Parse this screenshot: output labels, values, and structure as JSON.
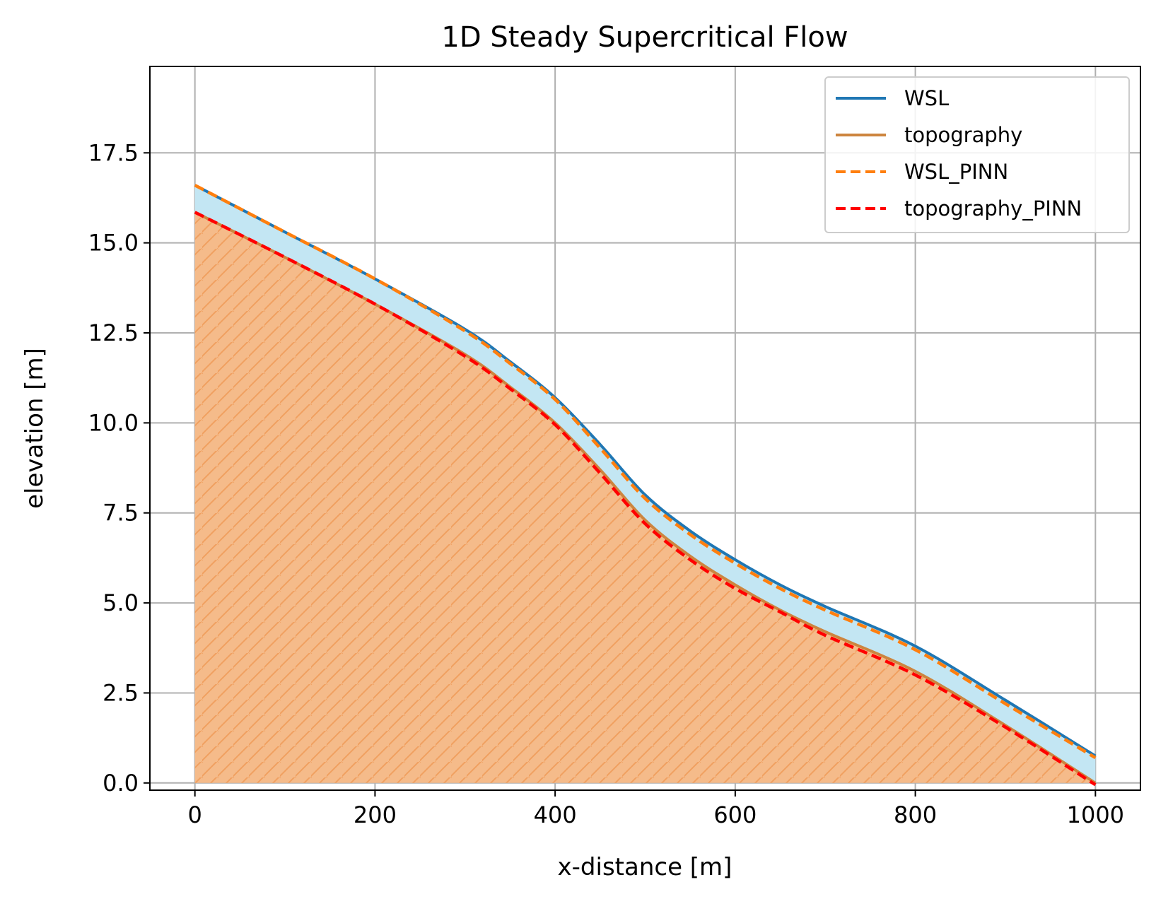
{
  "chart_data": {
    "type": "line",
    "title": "1D Steady Supercritical Flow",
    "xlabel": "x-distance [m]",
    "ylabel": "elevation [m]",
    "xlim": [
      -50,
      1050
    ],
    "ylim": [
      -0.2,
      19.9
    ],
    "xticks": [
      "0",
      "200",
      "400",
      "600",
      "800",
      "1000"
    ],
    "yticks": [
      "0.0",
      "2.5",
      "5.0",
      "7.5",
      "10.0",
      "12.5",
      "15.0",
      "17.5"
    ],
    "grid": true,
    "legend_position": "top-right",
    "x": [
      0,
      100,
      200,
      300,
      350,
      400,
      450,
      500,
      550,
      600,
      650,
      700,
      800,
      900,
      1000
    ],
    "series": [
      {
        "name": "WSL",
        "color": "#1f77b4",
        "style": "solid",
        "values": [
          16.6,
          15.3,
          14.0,
          12.6,
          11.7,
          10.7,
          9.4,
          8.0,
          7.0,
          6.2,
          5.5,
          4.9,
          3.8,
          2.3,
          0.75
        ]
      },
      {
        "name": "topography",
        "color": "#cd853f",
        "style": "solid",
        "values": [
          15.85,
          14.6,
          13.3,
          11.9,
          11.0,
          10.0,
          8.7,
          7.3,
          6.3,
          5.5,
          4.8,
          4.2,
          3.1,
          1.6,
          0.0
        ]
      },
      {
        "name": "WSL_PINN",
        "color": "#ff7f0e",
        "style": "dashed",
        "values": [
          16.6,
          15.3,
          14.0,
          12.55,
          11.65,
          10.65,
          9.3,
          7.9,
          6.9,
          6.1,
          5.4,
          4.8,
          3.7,
          2.2,
          0.7
        ]
      },
      {
        "name": "topography_PINN",
        "color": "#ff0000",
        "style": "dashed",
        "values": [
          15.85,
          14.6,
          13.3,
          11.85,
          10.95,
          9.95,
          8.6,
          7.2,
          6.2,
          5.4,
          4.75,
          4.1,
          3.0,
          1.55,
          -0.05
        ]
      }
    ],
    "fill_colors": {
      "water": "#c3e6f3",
      "ground": "#f5bb8a",
      "hatch": "#f0a060"
    }
  }
}
